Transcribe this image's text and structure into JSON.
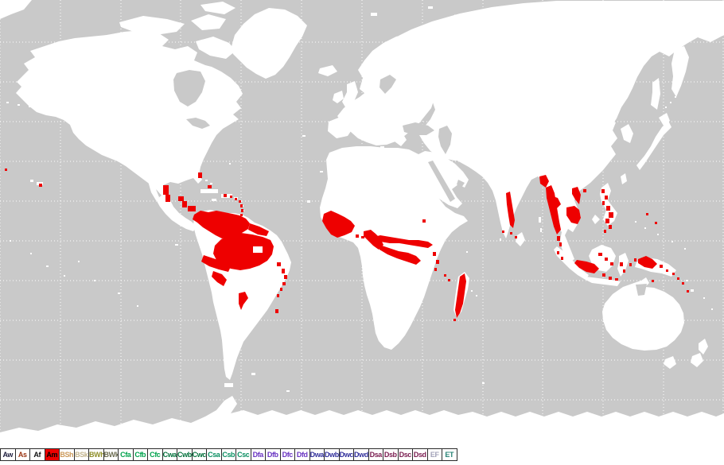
{
  "map": {
    "highlighted_code": "Am",
    "colors": {
      "ocean": "#c9c9c9",
      "land": "#ffffff",
      "highlight_red": "#ee0000",
      "graticule": "#ffffff",
      "legend_border": "#2b2b2b"
    }
  },
  "legend": {
    "items": [
      {
        "label": "Aw",
        "text_color": "#202040",
        "bg": "#ffffff"
      },
      {
        "label": "As",
        "text_color": "#993311",
        "bg": "#ffffff"
      },
      {
        "label": "Af",
        "text_color": "#111111",
        "bg": "#ffffff"
      },
      {
        "label": "Am",
        "text_color": "#000000",
        "bg": "#ee0000"
      },
      {
        "label": "BSh",
        "text_color": "#cc9a5b",
        "bg": "#ffffff"
      },
      {
        "label": "BSk",
        "text_color": "#c4b58e",
        "bg": "#ffffff"
      },
      {
        "label": "BWh",
        "text_color": "#8f8f29",
        "bg": "#ffffff"
      },
      {
        "label": "BWk",
        "text_color": "#6d6d52",
        "bg": "#ffffff"
      },
      {
        "label": "Cfa",
        "text_color": "#00a34d",
        "bg": "#ffffff"
      },
      {
        "label": "Cfb",
        "text_color": "#00a34d",
        "bg": "#ffffff"
      },
      {
        "label": "Cfc",
        "text_color": "#00a34d",
        "bg": "#ffffff"
      },
      {
        "label": "Cwa",
        "text_color": "#00703a",
        "bg": "#ffffff"
      },
      {
        "label": "Cwb",
        "text_color": "#00703a",
        "bg": "#ffffff"
      },
      {
        "label": "Cwc",
        "text_color": "#00703a",
        "bg": "#ffffff"
      },
      {
        "label": "Csa",
        "text_color": "#0b8f62",
        "bg": "#ffffff"
      },
      {
        "label": "Csb",
        "text_color": "#0b8f62",
        "bg": "#ffffff"
      },
      {
        "label": "Csc",
        "text_color": "#0b8f62",
        "bg": "#ffffff"
      },
      {
        "label": "Dfa",
        "text_color": "#6a35c2",
        "bg": "#ffffff"
      },
      {
        "label": "Dfb",
        "text_color": "#6a35c2",
        "bg": "#ffffff"
      },
      {
        "label": "Dfc",
        "text_color": "#6a35c2",
        "bg": "#ffffff"
      },
      {
        "label": "Dfd",
        "text_color": "#6a35c2",
        "bg": "#ffffff"
      },
      {
        "label": "Dwa",
        "text_color": "#32309c",
        "bg": "#ffffff"
      },
      {
        "label": "Dwb",
        "text_color": "#32309c",
        "bg": "#ffffff"
      },
      {
        "label": "Dwc",
        "text_color": "#32309c",
        "bg": "#ffffff"
      },
      {
        "label": "Dwd",
        "text_color": "#32309c",
        "bg": "#ffffff"
      },
      {
        "label": "Dsa",
        "text_color": "#7a1d50",
        "bg": "#ffffff"
      },
      {
        "label": "Dsb",
        "text_color": "#7a1d50",
        "bg": "#ffffff"
      },
      {
        "label": "Dsc",
        "text_color": "#7a1d50",
        "bg": "#ffffff"
      },
      {
        "label": "Dsd",
        "text_color": "#7a1d50",
        "bg": "#ffffff"
      },
      {
        "label": "EF",
        "text_color": "#a2a2b8",
        "bg": "#ffffff"
      },
      {
        "label": "ET",
        "text_color": "#2a8577",
        "bg": "#ffffff"
      }
    ]
  }
}
